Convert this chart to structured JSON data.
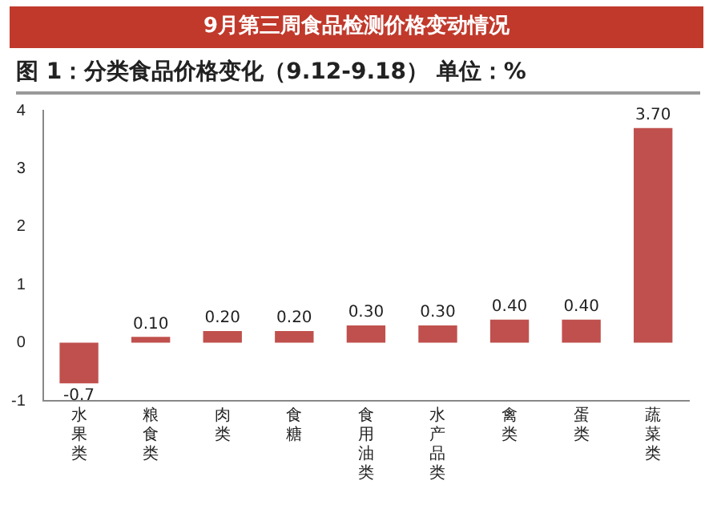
{
  "chart_data": {
    "type": "bar",
    "title": "9月第三周食品检测价格变动情况",
    "subtitle": "图 1：分类食品价格变化（9.12-9.18） 单位：%",
    "categories": [
      "水果类",
      "粮食类",
      "肉类",
      "食糖",
      "食用油类",
      "水产品类",
      "禽类",
      "蛋类",
      "蔬菜类"
    ],
    "values": [
      -0.7,
      0.1,
      0.2,
      0.2,
      0.3,
      0.3,
      0.4,
      0.4,
      3.7
    ],
    "value_labels": [
      "-0.7",
      "0.10",
      "0.20",
      "0.20",
      "0.30",
      "0.30",
      "0.40",
      "0.40",
      "3.70"
    ],
    "color": "#c0504d",
    "ylim": [
      -1,
      4
    ],
    "yticks": [
      -1,
      0,
      1,
      2,
      3,
      4
    ],
    "grid": false,
    "legend": false
  }
}
